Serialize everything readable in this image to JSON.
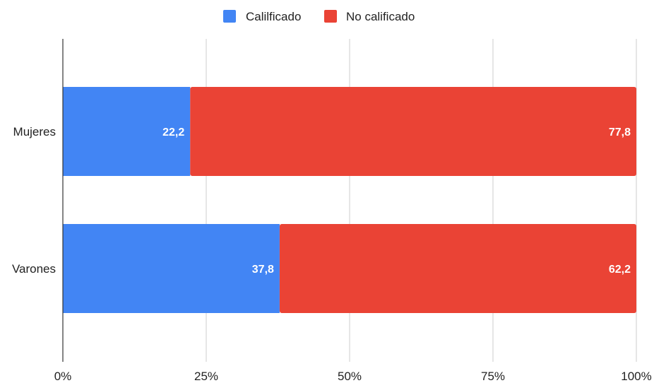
{
  "chart_data": {
    "type": "bar",
    "orientation": "horizontal",
    "stacked": "percent",
    "title": "",
    "xlabel": "",
    "ylabel": "",
    "categories": [
      "Mujeres",
      "Varones"
    ],
    "series": [
      {
        "name": "Calilficado",
        "color": "#4285f4",
        "values": [
          22.2,
          37.8
        ],
        "labels": [
          "22,2",
          "37,8"
        ]
      },
      {
        "name": "No calificado",
        "color": "#ea4335",
        "values": [
          77.8,
          62.2
        ],
        "labels": [
          "77,8",
          "62,2"
        ]
      }
    ],
    "xlim": [
      0,
      100
    ],
    "x_ticks": [
      0,
      25,
      50,
      75,
      100
    ],
    "x_tick_labels": [
      "0%",
      "25%",
      "50%",
      "75%",
      "100%"
    ],
    "grid": true,
    "legend_position": "top-center"
  }
}
